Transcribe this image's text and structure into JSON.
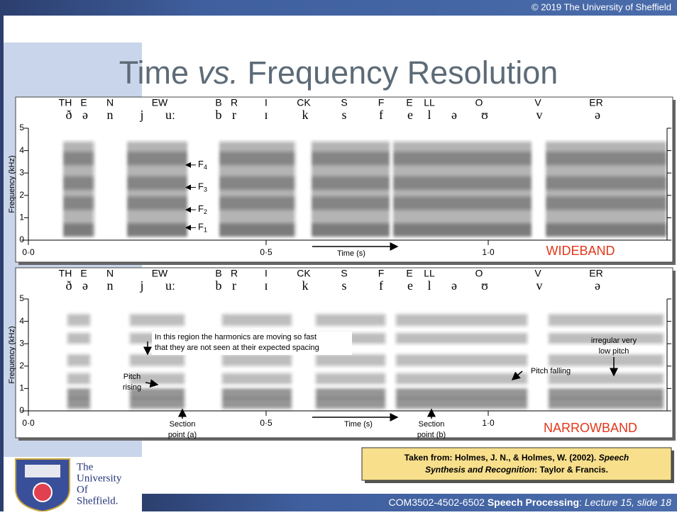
{
  "header": {
    "copyright": "© 2019  The University of Sheffield"
  },
  "title": {
    "part1": "Time ",
    "italic": "vs.",
    "part2": " Frequency Resolution"
  },
  "spectrograms": [
    {
      "words": [
        "TH",
        "E",
        "N",
        "EW",
        "B",
        "R",
        "I",
        "CK",
        "S",
        "F",
        "E",
        "LL",
        "O",
        "V",
        "ER"
      ],
      "phonemes": [
        "ð",
        "ə",
        "n",
        "j",
        "uː",
        "b",
        "r",
        "ɪ",
        "k",
        "s",
        "f",
        "e",
        "l",
        "ə",
        "ʊ",
        "v",
        "ə"
      ],
      "y_axis_label": "Frequency (kHz)",
      "yticks": [
        "5",
        "4",
        "3",
        "2",
        "1",
        "0"
      ],
      "xticks": [
        "0·0",
        "0·5",
        "1·0"
      ],
      "time_label": "Time (s)",
      "kind_label": "WIDEBAND",
      "formants": [
        {
          "letter": "F",
          "sub": "4"
        },
        {
          "letter": "F",
          "sub": "3"
        },
        {
          "letter": "F",
          "sub": "2"
        },
        {
          "letter": "F",
          "sub": "1"
        }
      ]
    },
    {
      "words": [
        "TH",
        "E",
        "N",
        "EW",
        "B",
        "R",
        "I",
        "CK",
        "S",
        "F",
        "E",
        "LL",
        "O",
        "V",
        "ER"
      ],
      "phonemes": [
        "ð",
        "ə",
        "n",
        "j",
        "uː",
        "b",
        "r",
        "ɪ",
        "k",
        "s",
        "f",
        "e",
        "l",
        "ə",
        "ʊ",
        "v",
        "ə"
      ],
      "y_axis_label": "Frequency (kHz)",
      "yticks": [
        "5",
        "4",
        "3",
        "2",
        "1",
        "0"
      ],
      "xticks": [
        "0·0",
        "0·5",
        "1·0"
      ],
      "time_label": "Time (s)",
      "kind_label": "NARROWBAND",
      "annotations": {
        "harmonics": [
          "In this region the harmonics are moving so fast",
          "that they are not seen at their expected spacing"
        ],
        "pitch_rising": [
          "Pitch",
          "rising"
        ],
        "pitch_falling": [
          "Pitch falling"
        ],
        "low_pitch": [
          "irregular very",
          "low pitch"
        ],
        "section_a": [
          "Section",
          "point (a)"
        ],
        "section_b": [
          "Section",
          "point (b)"
        ]
      }
    }
  ],
  "citation": {
    "prefix": "Taken from: Holmes, J. N., & Holmes, W. (2002). ",
    "title1": "Speech",
    "title2": "Synthesis and Recognition",
    "suffix": ": Taylor & Francis."
  },
  "logo": [
    "The",
    "University",
    "Of",
    "Sheffield."
  ],
  "footer": {
    "course": "COM3502-4502-6502 ",
    "module": "Speech Processing",
    "sep": ": ",
    "slide": "Lecture 15, slide 18"
  }
}
